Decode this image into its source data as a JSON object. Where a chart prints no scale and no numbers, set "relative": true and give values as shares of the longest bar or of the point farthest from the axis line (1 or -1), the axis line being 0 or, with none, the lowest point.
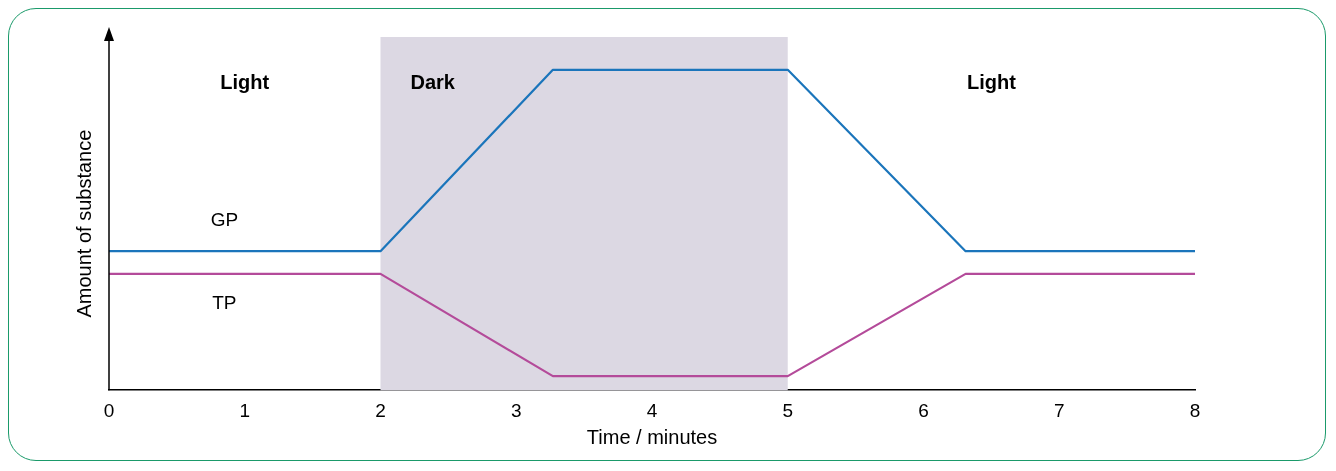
{
  "chart_data": {
    "type": "line",
    "relative": true,
    "xlabel": "Time / minutes",
    "ylabel": "Amount of substance",
    "xlim": [
      0,
      8
    ],
    "xticks": [
      0,
      1,
      2,
      3,
      4,
      5,
      6,
      7,
      8
    ],
    "grid": false,
    "legend": false,
    "marker": "none",
    "line_style": "solid",
    "series": [
      {
        "name": "GP",
        "color": "#1b75bb",
        "x": [
          0,
          2,
          3.27,
          5,
          6.31,
          8
        ],
        "values": [
          0.434,
          0.434,
          1,
          1,
          0.434,
          0.434
        ]
      },
      {
        "name": "TP",
        "color": "#b44b9a",
        "x": [
          0,
          2,
          3.27,
          5,
          6.31,
          8
        ],
        "values": [
          0.363,
          0.363,
          0.044,
          0.044,
          0.363,
          0.363
        ]
      }
    ],
    "bands": [
      {
        "axis": "x",
        "from": 2,
        "to": 5,
        "label": "Dark",
        "color": "#dcd8e3"
      }
    ],
    "annotations": [
      "Light",
      "Light"
    ]
  }
}
